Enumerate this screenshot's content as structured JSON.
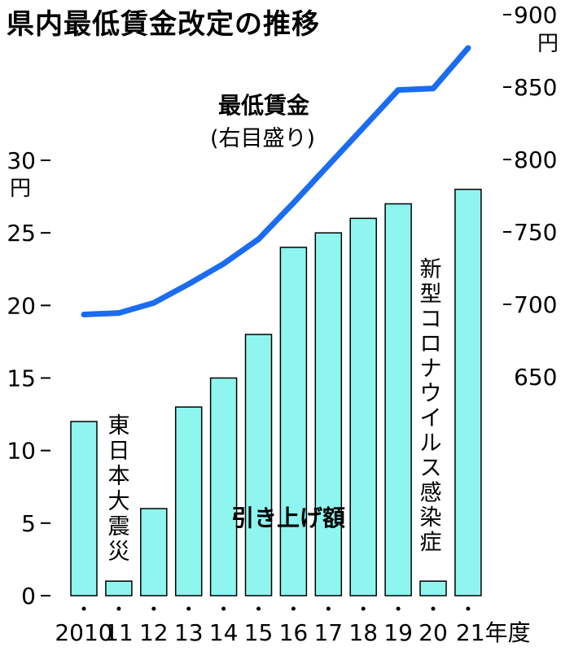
{
  "title": "県内最低賃金改定の推移",
  "colors": {
    "bar": "#8ef5ef",
    "bar_stroke": "#000000",
    "line": "#1a6cf0"
  },
  "chart_data": {
    "type": "bar+line",
    "title": "県内最低賃金改定の推移",
    "categories": [
      "2010",
      "11",
      "12",
      "13",
      "14",
      "15",
      "16",
      "17",
      "18",
      "19",
      "20",
      "21"
    ],
    "x_suffix": "年度",
    "series": [
      {
        "name": "引き上げ額",
        "type": "bar",
        "axis": "left",
        "values": [
          12,
          1,
          6,
          13,
          15,
          18,
          24,
          25,
          26,
          27,
          1,
          28
        ]
      },
      {
        "name": "最低賃金",
        "name_note": "(右目盛り)",
        "type": "line",
        "axis": "right",
        "values": [
          693,
          694,
          701,
          714,
          728,
          745,
          770,
          796,
          822,
          848,
          849,
          877
        ]
      }
    ],
    "left_axis": {
      "unit": "円",
      "ylim": [
        0,
        30
      ],
      "ticks": [
        0,
        5,
        10,
        15,
        20,
        25,
        30
      ]
    },
    "right_axis": {
      "unit": "円",
      "ylim": [
        650,
        900
      ],
      "ticks": [
        650,
        700,
        750,
        800,
        850,
        900
      ]
    },
    "annotations": {
      "earthquake": "東日本大震災",
      "covid": "新型コロナウイルス感染症"
    },
    "grid": false,
    "legend": "none"
  }
}
